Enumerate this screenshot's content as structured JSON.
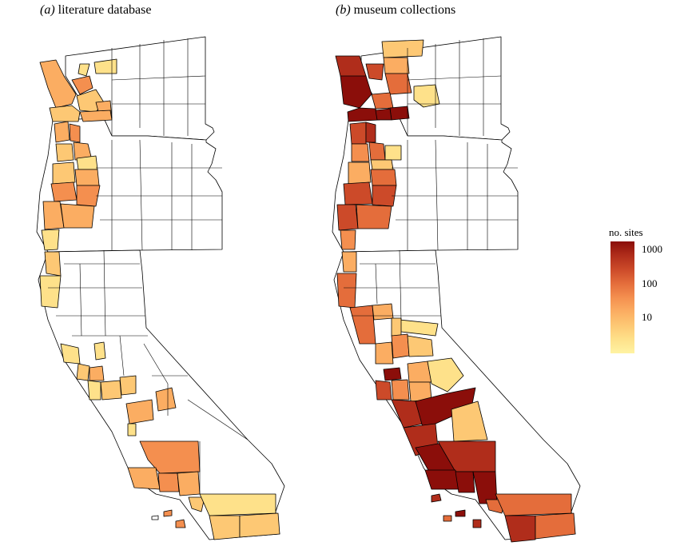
{
  "panels": [
    {
      "label": "(a)",
      "title": "literature database"
    },
    {
      "label": "(b)",
      "title": "museum collections"
    }
  ],
  "legend": {
    "title": "no. sites",
    "ticks": [
      "1000",
      "100",
      "10"
    ],
    "scale": "log",
    "colors": [
      "#fff3a3",
      "#fee18a",
      "#fdc874",
      "#fbad62",
      "#f48f4f",
      "#e46d3b",
      "#cc4a29",
      "#b02d1b",
      "#8b0e0a"
    ]
  },
  "chart_data": {
    "type": "choropleth",
    "region": "US West Coast counties (Washington, Oregon, California)",
    "measure": "no. sites",
    "scale": "log",
    "legend_ticks": [
      1000,
      100,
      10
    ],
    "panels": [
      {
        "label": "(a)",
        "title": "literature database"
      },
      {
        "label": "(b)",
        "title": "museum collections"
      }
    ]
  }
}
